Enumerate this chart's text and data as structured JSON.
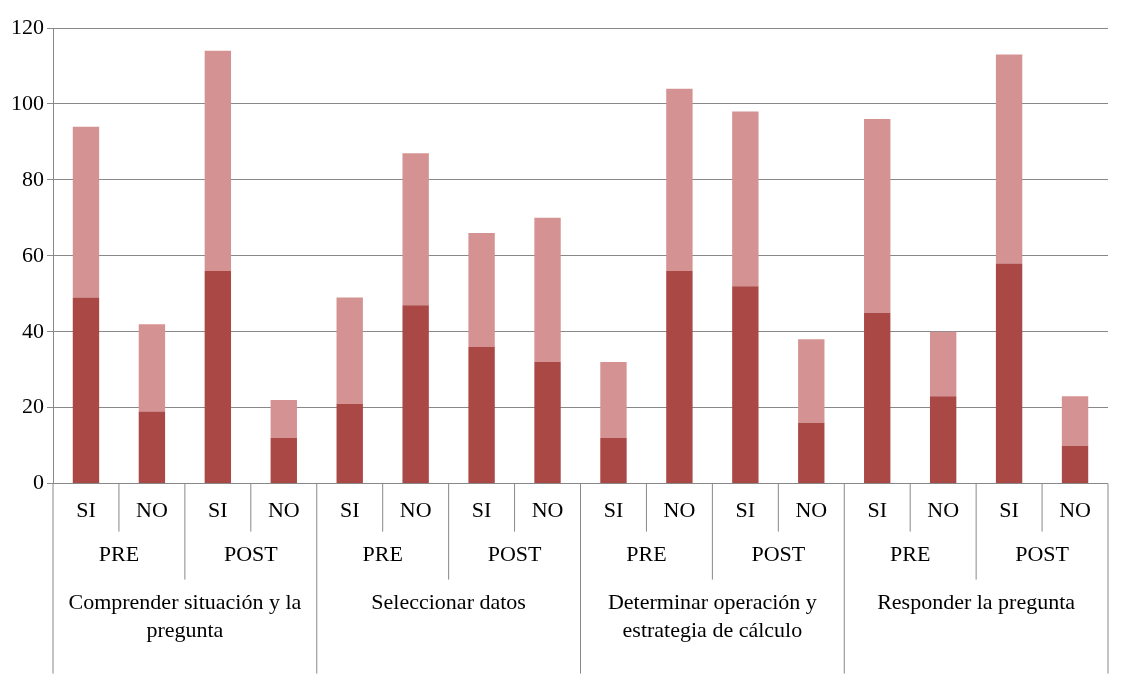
{
  "chart_data": {
    "type": "bar",
    "stacked": true,
    "categories": [
      "SI",
      "NO",
      "SI",
      "NO",
      "SI",
      "NO",
      "SI",
      "NO",
      "SI",
      "NO",
      "SI",
      "NO",
      "SI",
      "NO",
      "SI",
      "NO"
    ],
    "series": [
      {
        "color": "#aa4846",
        "values": [
          49,
          19,
          56,
          12,
          21,
          47,
          36,
          32,
          12,
          56,
          52,
          16,
          45,
          23,
          58,
          10
        ]
      },
      {
        "color": "#d49392",
        "values": [
          45,
          23,
          58,
          10,
          28,
          40,
          30,
          38,
          20,
          48,
          46,
          22,
          51,
          17,
          55,
          13
        ]
      }
    ],
    "annotations": [
      "PRE",
      "POST",
      "PRE",
      "POST",
      "PRE",
      "POST",
      "PRE",
      "POST",
      "Comprender situación y la pregunta",
      "Seleccionar datos",
      "Determinar operación y estrategia de cálculo",
      "Responder la pregunta"
    ],
    "ylim": [
      0,
      120
    ],
    "yticks": [
      0,
      20,
      40,
      60,
      80,
      100,
      120
    ],
    "grid": "y",
    "legend": false
  }
}
